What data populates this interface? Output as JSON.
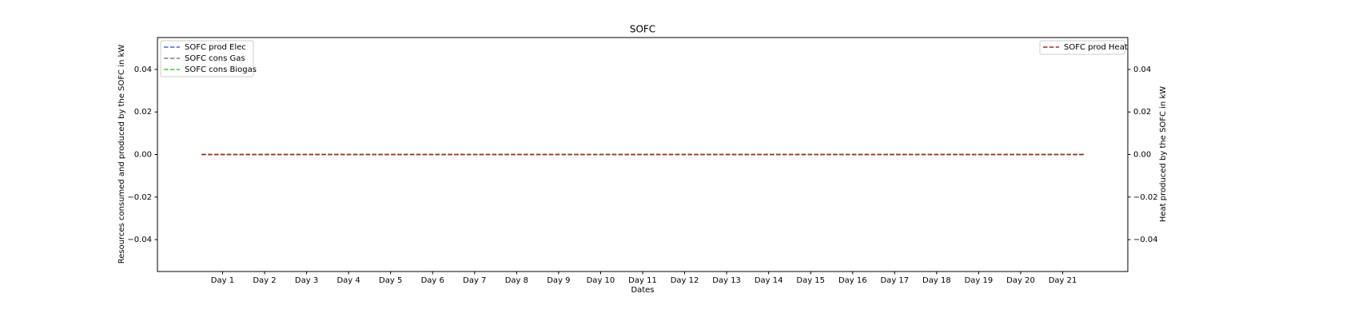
{
  "chart_data": {
    "type": "line",
    "title": "SOFC",
    "xlabel": "Dates",
    "ylabel": "Resources consumed and produced by the SOFC in kW",
    "y2label": "Heat produced by the SOFC in kW",
    "x": [
      0,
      1,
      2,
      3,
      4,
      5,
      6,
      7,
      8,
      9,
      10,
      11,
      12,
      13,
      14,
      15,
      16,
      17,
      18,
      19,
      20,
      21
    ],
    "xlim": [
      -1.05,
      22.05
    ],
    "xticks": [
      {
        "value": 0.5,
        "label": "Day 1"
      },
      {
        "value": 1.5,
        "label": "Day 2"
      },
      {
        "value": 2.5,
        "label": "Day 3"
      },
      {
        "value": 3.5,
        "label": "Day 4"
      },
      {
        "value": 4.5,
        "label": "Day 5"
      },
      {
        "value": 5.5,
        "label": "Day 6"
      },
      {
        "value": 6.5,
        "label": "Day 7"
      },
      {
        "value": 7.5,
        "label": "Day 8"
      },
      {
        "value": 8.5,
        "label": "Day 9"
      },
      {
        "value": 9.5,
        "label": "Day 10"
      },
      {
        "value": 10.5,
        "label": "Day 11"
      },
      {
        "value": 11.5,
        "label": "Day 12"
      },
      {
        "value": 12.5,
        "label": "Day 13"
      },
      {
        "value": 13.5,
        "label": "Day 14"
      },
      {
        "value": 14.5,
        "label": "Day 15"
      },
      {
        "value": 15.5,
        "label": "Day 16"
      },
      {
        "value": 16.5,
        "label": "Day 17"
      },
      {
        "value": 17.5,
        "label": "Day 18"
      },
      {
        "value": 18.5,
        "label": "Day 19"
      },
      {
        "value": 19.5,
        "label": "Day 20"
      },
      {
        "value": 20.5,
        "label": "Day 21"
      }
    ],
    "ylim": [
      -0.055,
      0.055
    ],
    "yticks": [
      {
        "value": -0.04,
        "label": "−0.04"
      },
      {
        "value": -0.02,
        "label": "−0.02"
      },
      {
        "value": 0,
        "label": "0.00"
      },
      {
        "value": 0.02,
        "label": "0.02"
      },
      {
        "value": 0.04,
        "label": "0.04"
      }
    ],
    "y2lim": [
      -0.055,
      0.055
    ],
    "y2ticks": [
      {
        "value": -0.04,
        "label": "−0.04"
      },
      {
        "value": -0.02,
        "label": "−0.02"
      },
      {
        "value": 0,
        "label": "0.00"
      },
      {
        "value": 0.02,
        "label": "0.02"
      },
      {
        "value": 0.04,
        "label": "0.04"
      }
    ],
    "legend": "upper left",
    "legend2": "upper right",
    "series": [
      {
        "name": "SOFC prod Elec",
        "color": "#4169e1",
        "values": [
          0,
          0,
          0,
          0,
          0,
          0,
          0,
          0,
          0,
          0,
          0,
          0,
          0,
          0,
          0,
          0,
          0,
          0,
          0,
          0,
          0,
          0
        ]
      },
      {
        "name": "SOFC cons Gas",
        "color": "#808080",
        "values": [
          0,
          0,
          0,
          0,
          0,
          0,
          0,
          0,
          0,
          0,
          0,
          0,
          0,
          0,
          0,
          0,
          0,
          0,
          0,
          0,
          0,
          0
        ]
      },
      {
        "name": "SOFC cons Biogas",
        "color": "#32cd32",
        "values": [
          0,
          0,
          0,
          0,
          0,
          0,
          0,
          0,
          0,
          0,
          0,
          0,
          0,
          0,
          0,
          0,
          0,
          0,
          0,
          0,
          0,
          0
        ]
      },
      {
        "name": "SOFC prod Heat",
        "color": "#b22222",
        "axis": "y2",
        "values": [
          0,
          0,
          0,
          0,
          0,
          0,
          0,
          0,
          0,
          0,
          0,
          0,
          0,
          0,
          0,
          0,
          0,
          0,
          0,
          0,
          0,
          0
        ]
      }
    ]
  }
}
